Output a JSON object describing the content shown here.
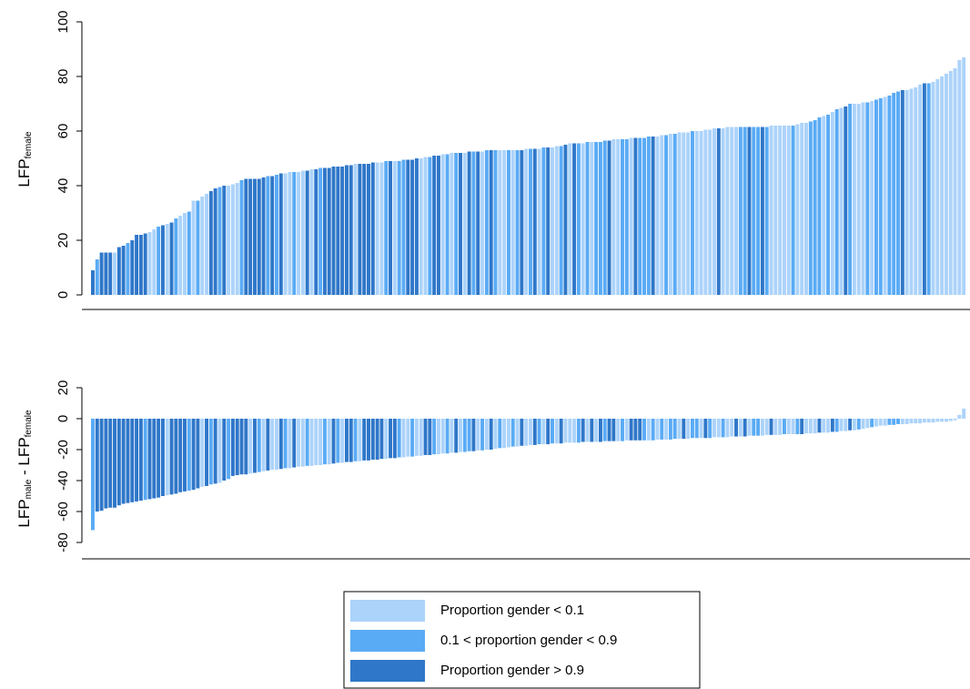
{
  "chart_data": [
    {
      "type": "bar",
      "ylabel": [
        {
          "text": "LFP"
        },
        {
          "text": "female",
          "sub": true
        }
      ],
      "ylim": [
        0,
        100
      ],
      "yticks": [
        0,
        20,
        40,
        60,
        80,
        100
      ],
      "values": [
        9,
        13,
        15.5,
        15.5,
        15.5,
        15.5,
        17.5,
        18,
        19,
        20,
        22,
        22,
        22.5,
        23,
        24,
        25,
        25.5,
        26,
        26.5,
        28,
        29,
        30,
        30.5,
        34.5,
        34.5,
        36,
        37,
        38,
        39,
        39.5,
        40,
        40,
        40.5,
        41,
        42,
        42.5,
        42.5,
        42.5,
        42.5,
        43,
        43.5,
        43.5,
        44,
        44.5,
        44.5,
        45,
        45,
        45,
        45.5,
        45.5,
        46,
        46,
        46.5,
        46.5,
        46.5,
        47,
        47,
        47,
        47.5,
        47.5,
        48,
        48,
        48,
        48,
        48.5,
        48.5,
        48.5,
        49,
        49,
        49,
        49,
        49.5,
        49.5,
        49.5,
        50,
        50,
        50.5,
        50.5,
        51,
        51,
        51.5,
        51.5,
        52,
        52,
        52,
        52,
        52.5,
        52.5,
        52.5,
        52.5,
        53,
        53,
        53,
        53,
        53,
        53,
        53,
        53,
        53,
        53.5,
        53.5,
        53.5,
        53.5,
        54,
        54,
        54,
        54.5,
        54.5,
        55,
        55.5,
        55.5,
        55.5,
        55.5,
        56,
        56,
        56,
        56,
        56.5,
        56.5,
        57,
        57,
        57,
        57,
        57.5,
        57.5,
        57.5,
        57.5,
        58,
        58,
        58,
        58.5,
        58.5,
        59,
        59,
        59.5,
        59.5,
        59.5,
        60,
        60,
        60,
        60.5,
        60.5,
        61,
        61,
        61,
        61.5,
        61.5,
        61.5,
        61.5,
        61.5,
        61.5,
        61.5,
        61.5,
        61.5,
        61.5,
        62,
        62,
        62,
        62,
        62,
        62,
        62.5,
        63,
        63,
        63.5,
        64,
        65,
        65.5,
        66,
        67,
        68,
        68.5,
        69,
        70,
        70,
        70,
        70.5,
        70.5,
        71,
        71.5,
        72,
        72.5,
        73,
        74,
        74.5,
        75,
        75,
        75.5,
        76,
        77,
        77.5,
        77.5,
        78,
        79,
        80,
        81,
        82,
        83,
        86,
        87
      ],
      "group": [
        2,
        1,
        2,
        2,
        2,
        0,
        2,
        2,
        1,
        2,
        2,
        2,
        2,
        0,
        0,
        1,
        2,
        0,
        2,
        1,
        0,
        0,
        1,
        0,
        1,
        0,
        0,
        2,
        2,
        1,
        2,
        0,
        0,
        0,
        1,
        2,
        2,
        2,
        2,
        2,
        1,
        2,
        1,
        2,
        0,
        0,
        1,
        0,
        0,
        2,
        0,
        2,
        1,
        2,
        2,
        2,
        2,
        2,
        2,
        2,
        0,
        2,
        2,
        2,
        2,
        0,
        0,
        1,
        2,
        0,
        1,
        1,
        2,
        2,
        2,
        0,
        0,
        1,
        2,
        2,
        0,
        1,
        0,
        1,
        2,
        0,
        2,
        1,
        2,
        0,
        1,
        2,
        1,
        0,
        0,
        1,
        0,
        1,
        2,
        0,
        1,
        2,
        0,
        1,
        2,
        0,
        0,
        1,
        2,
        0,
        2,
        1,
        0,
        1,
        0,
        1,
        1,
        1,
        2,
        0,
        0,
        1,
        1,
        0,
        2,
        1,
        1,
        1,
        2,
        0,
        0,
        1,
        0,
        1,
        0,
        0,
        0,
        1,
        0,
        0,
        0,
        0,
        0,
        2,
        0,
        0,
        0,
        0,
        1,
        1,
        2,
        1,
        1,
        2,
        1,
        0,
        0,
        0,
        0,
        0,
        1,
        0,
        0,
        0,
        1,
        1,
        1,
        0,
        1,
        0,
        1,
        0,
        2,
        1,
        0,
        0,
        0,
        1,
        0,
        1,
        1,
        0,
        1,
        1,
        1,
        2,
        0,
        0,
        0,
        0,
        2,
        1,
        0,
        0,
        0,
        0,
        0,
        0,
        0,
        0
      ]
    },
    {
      "type": "bar",
      "ylabel": [
        {
          "text": "LFP"
        },
        {
          "text": "male",
          "sub": true
        },
        {
          "text": " - LFP"
        },
        {
          "text": "female",
          "sub": true
        }
      ],
      "ylim": [
        -80,
        20
      ],
      "yticks": [
        -80,
        -60,
        -40,
        -20,
        0,
        20
      ],
      "values": [
        -72,
        -60,
        -59.5,
        -58,
        -57.5,
        -57.5,
        -56,
        -55,
        -54.5,
        -54,
        -53.5,
        -53,
        -52.5,
        -52,
        -51.5,
        -51,
        -50,
        -49.5,
        -49,
        -48.5,
        -47.5,
        -47,
        -46.5,
        -46,
        -45,
        -44,
        -43.5,
        -42.5,
        -42,
        -41.5,
        -40,
        -39,
        -37,
        -36.5,
        -36,
        -36,
        -35.5,
        -35,
        -34.5,
        -34,
        -33.5,
        -33,
        -33,
        -32.5,
        -32,
        -32,
        -31.5,
        -31,
        -31,
        -30.5,
        -30.5,
        -30,
        -30,
        -29.5,
        -29.5,
        -29,
        -28.5,
        -28.5,
        -28,
        -28,
        -27.5,
        -27.5,
        -27,
        -27,
        -26.5,
        -26.5,
        -26,
        -26,
        -25.5,
        -25.5,
        -25,
        -25,
        -24.5,
        -24.5,
        -24,
        -24,
        -23.5,
        -23.5,
        -23,
        -23,
        -22.5,
        -22.5,
        -22,
        -22,
        -21.5,
        -21.5,
        -21,
        -21,
        -20.5,
        -20.5,
        -20,
        -20,
        -19.5,
        -19,
        -19,
        -18.5,
        -18,
        -18,
        -17.5,
        -17.5,
        -17,
        -17,
        -16.5,
        -16.5,
        -16.5,
        -16,
        -16,
        -16,
        -15.5,
        -15.5,
        -15.5,
        -15.5,
        -15,
        -15,
        -15,
        -15,
        -15,
        -14.5,
        -14.5,
        -14.5,
        -14.5,
        -14.5,
        -14,
        -14,
        -14,
        -14,
        -14,
        -14,
        -14,
        -13.5,
        -13.5,
        -13.5,
        -13.5,
        -13,
        -13,
        -13,
        -13,
        -12.5,
        -12.5,
        -12.5,
        -12.5,
        -12.5,
        -12,
        -12,
        -12,
        -12,
        -11.5,
        -11.5,
        -11.5,
        -11.5,
        -11,
        -11,
        -11,
        -11,
        -10.5,
        -10.5,
        -10.5,
        -10.5,
        -10,
        -10,
        -10,
        -10,
        -10,
        -9.5,
        -9.5,
        -9.5,
        -9,
        -9,
        -9,
        -8.5,
        -8.5,
        -8,
        -8,
        -7.5,
        -7.5,
        -7,
        -6.5,
        -6,
        -5.5,
        -5,
        -4.5,
        -4.5,
        -4,
        -4,
        -3.5,
        -3.5,
        -3.5,
        -3,
        -3,
        -3,
        -2.5,
        -2.5,
        -2.5,
        -2,
        -2,
        -2,
        -1.5,
        -1,
        2.5,
        6.5
      ],
      "group": [
        1,
        2,
        2,
        2,
        2,
        2,
        2,
        2,
        2,
        2,
        2,
        2,
        1,
        2,
        2,
        2,
        2,
        0,
        2,
        2,
        2,
        2,
        1,
        2,
        2,
        0,
        2,
        1,
        2,
        0,
        2,
        1,
        2,
        2,
        2,
        2,
        0,
        2,
        1,
        0,
        2,
        0,
        0,
        2,
        1,
        0,
        2,
        0,
        0,
        1,
        0,
        0,
        0,
        1,
        0,
        2,
        1,
        0,
        2,
        2,
        1,
        0,
        2,
        2,
        2,
        2,
        2,
        0,
        2,
        2,
        1,
        0,
        0,
        1,
        0,
        0,
        2,
        2,
        1,
        0,
        0,
        1,
        0,
        2,
        0,
        1,
        1,
        2,
        0,
        1,
        0,
        2,
        0,
        1,
        0,
        0,
        1,
        0,
        2,
        0,
        0,
        2,
        1,
        0,
        2,
        1,
        0,
        2,
        0,
        0,
        0,
        1,
        2,
        0,
        2,
        0,
        2,
        1,
        2,
        2,
        0,
        1,
        0,
        2,
        2,
        2,
        1,
        0,
        1,
        0,
        1,
        0,
        1,
        1,
        0,
        2,
        0,
        1,
        1,
        0,
        2,
        1,
        0,
        0,
        1,
        0,
        0,
        2,
        0,
        2,
        0,
        1,
        1,
        0,
        0,
        2,
        0,
        0,
        1,
        0,
        0,
        1,
        2,
        0,
        0,
        0,
        2,
        0,
        0,
        2,
        1,
        0,
        0,
        2,
        0,
        1,
        0,
        0,
        1,
        0,
        0,
        0,
        1,
        1,
        1,
        0,
        0,
        0,
        0,
        0,
        0,
        0,
        0,
        0,
        0,
        0,
        0,
        0,
        0,
        0
      ]
    }
  ],
  "legend": [
    {
      "name": "Proportion gender < 0.1",
      "color": "#acd3fa"
    },
    {
      "name": "0.1 < proportion gender < 0.9",
      "color": "#5aabf5"
    },
    {
      "name": "Proportion gender > 0.9",
      "color": "#2f77c9"
    }
  ]
}
